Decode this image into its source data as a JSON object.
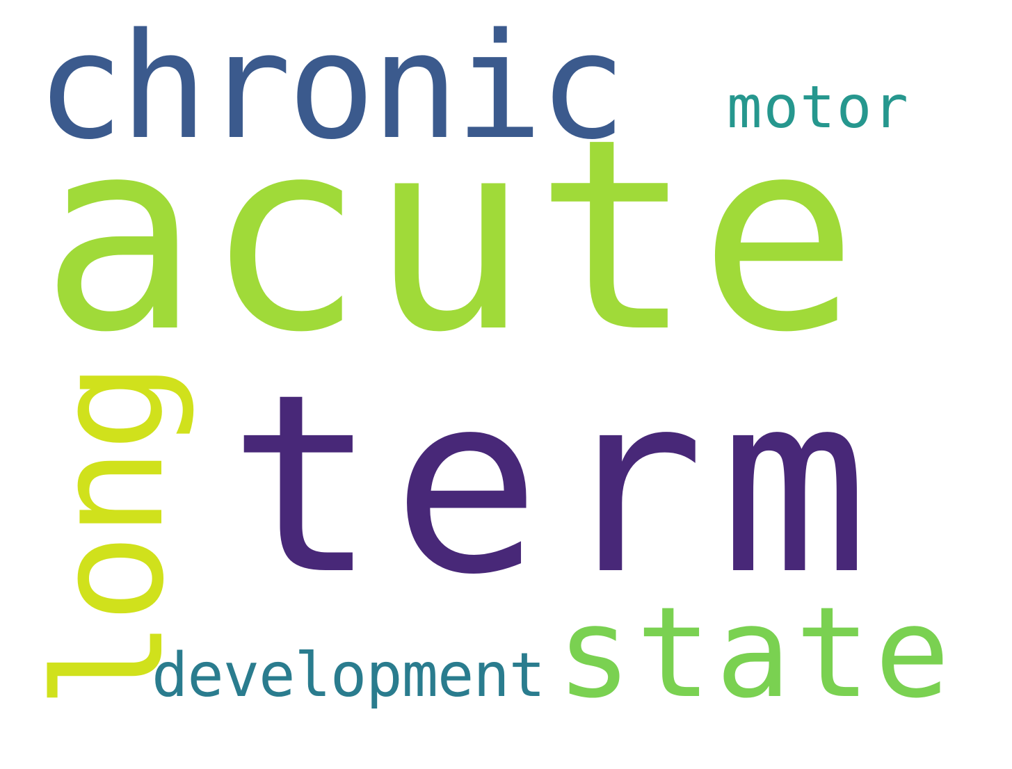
{
  "words": {
    "acute": {
      "text": "acute",
      "color": "#a0da39"
    },
    "term": {
      "text": "term",
      "color": "#482878"
    },
    "chronic": {
      "text": "chronic",
      "color": "#3b5a8d"
    },
    "state": {
      "text": "state",
      "color": "#7ad151"
    },
    "motor": {
      "text": "motor",
      "color": "#26978e"
    },
    "development": {
      "text": "development",
      "color": "#2a7c8e"
    },
    "long": {
      "text": "long",
      "color": "#d0e11c"
    }
  }
}
